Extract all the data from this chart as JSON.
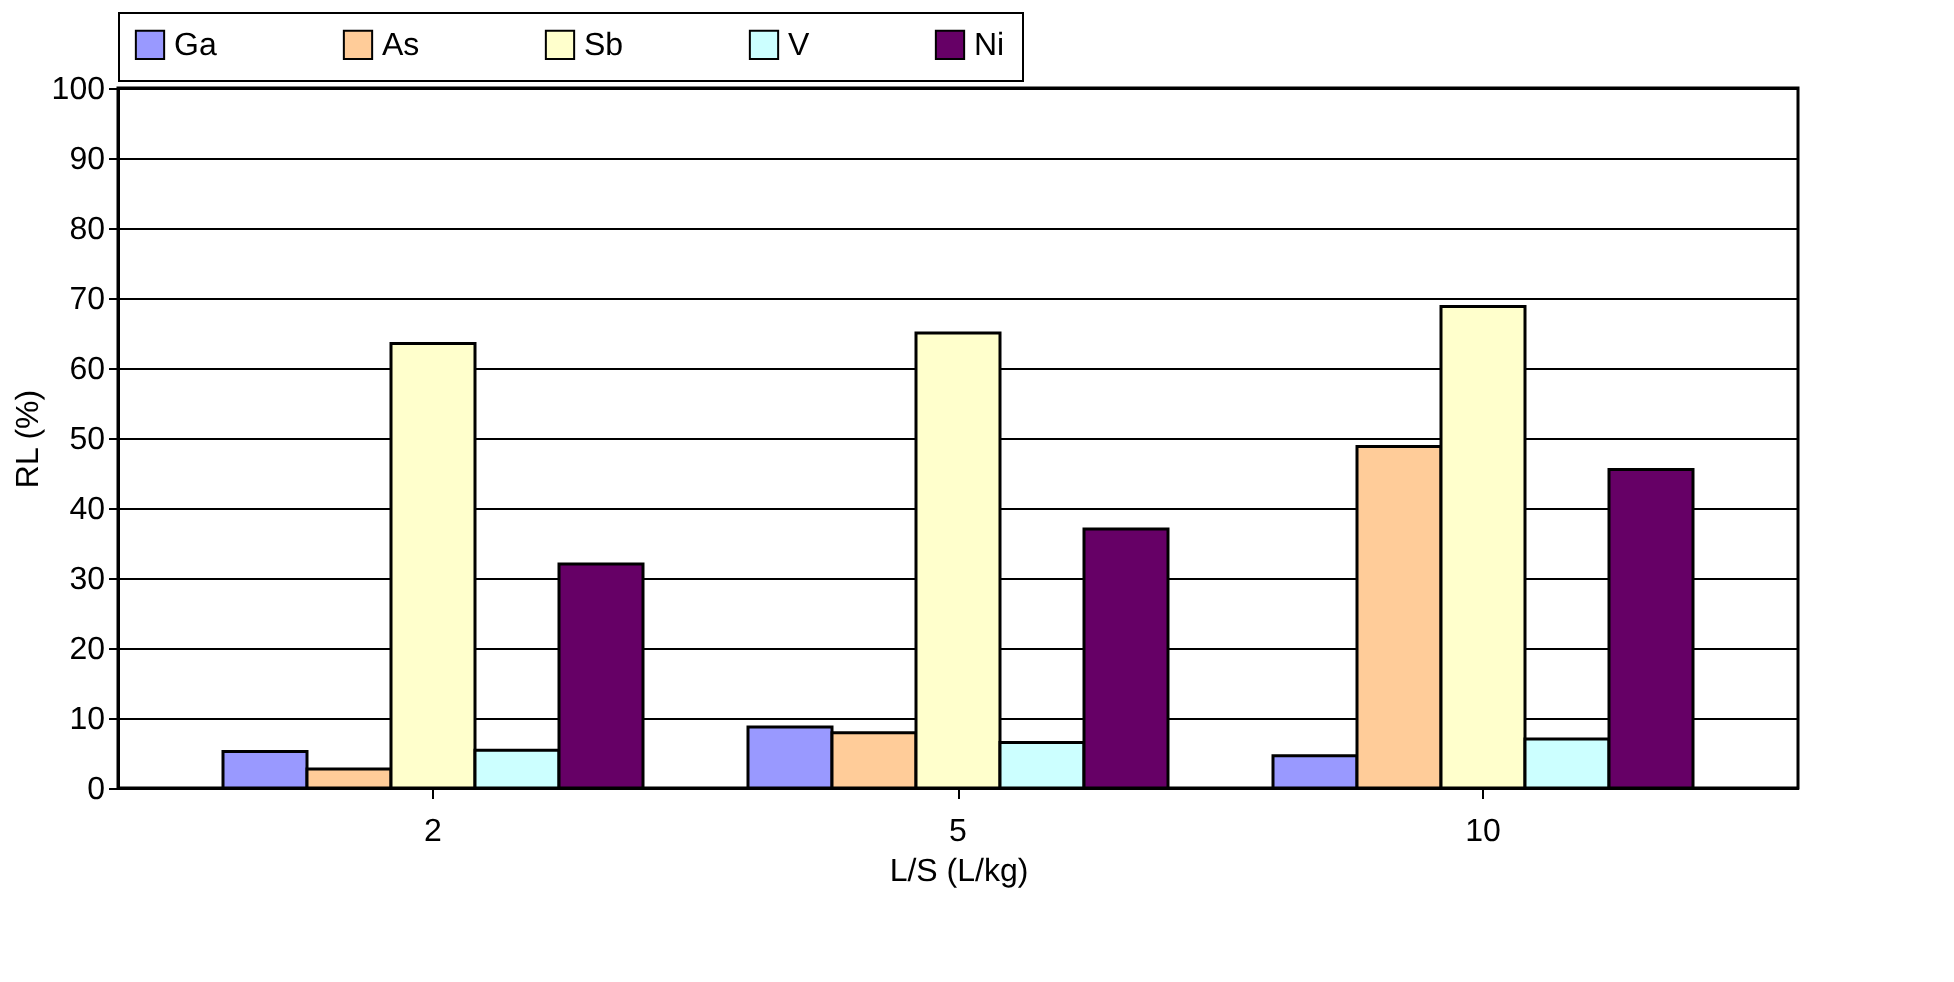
{
  "chart_data": {
    "type": "bar",
    "xlabel": "L/S (L/kg)",
    "ylabel": "RL (%)",
    "categories": [
      "2",
      "5",
      "10"
    ],
    "series": [
      {
        "name": "Ga",
        "color": "#9999ff",
        "values": [
          5.2,
          8.7,
          4.6
        ]
      },
      {
        "name": "As",
        "color": "#ffcc99",
        "values": [
          2.7,
          7.9,
          48.8
        ]
      },
      {
        "name": "Sb",
        "color": "#ffffcc",
        "values": [
          63.5,
          65,
          68.8
        ]
      },
      {
        "name": "V",
        "color": "#ccffff",
        "values": [
          5.4,
          6.5,
          7
        ]
      },
      {
        "name": "Ni",
        "color": "#660066",
        "values": [
          32,
          37,
          45.5
        ]
      }
    ],
    "ylim": [
      0,
      100
    ],
    "yticks": [
      0,
      10,
      20,
      30,
      40,
      50,
      60,
      70,
      80,
      90,
      100
    ],
    "grid": "y",
    "legend": "top"
  }
}
